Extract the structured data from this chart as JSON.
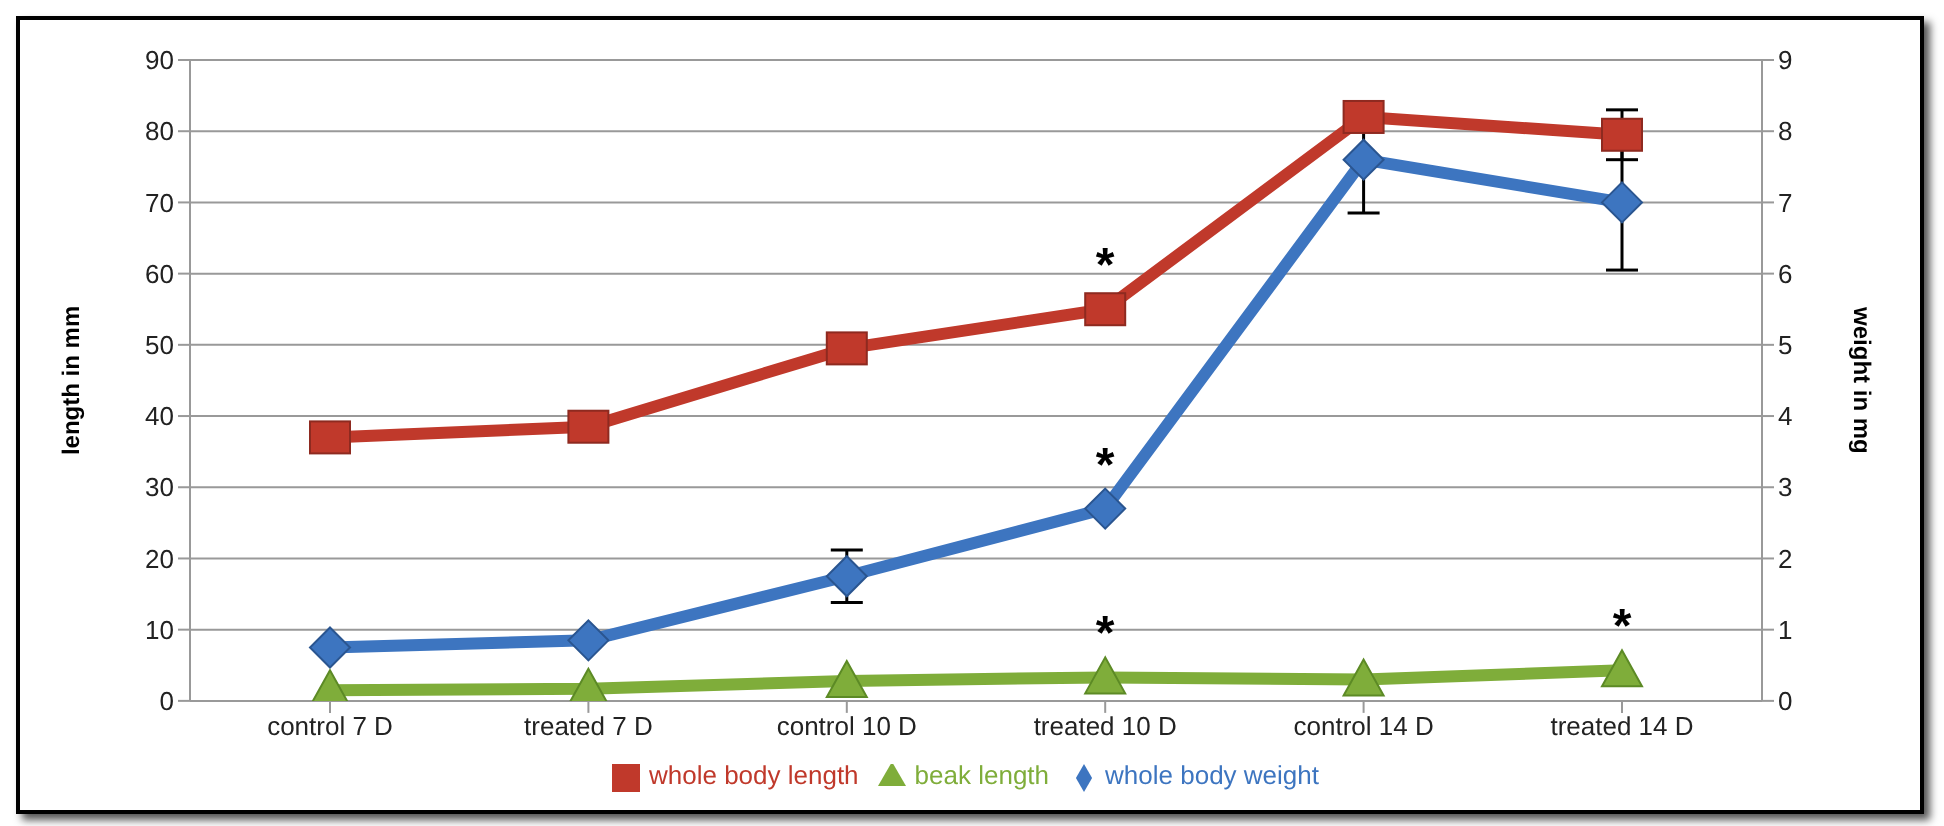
{
  "chart_data": {
    "type": "line",
    "ylabel": "length in mm",
    "y2label": "weight in mg",
    "categories": [
      "control 7 D",
      "treated 7 D",
      "control 10 D",
      "treated 10 D",
      "control 14 D",
      "treated 14 D"
    ],
    "series": [
      {
        "name": "whole body length",
        "color": "#c0392b",
        "marker": "square",
        "values": [
          37,
          38.5,
          49.5,
          55,
          82,
          79.5
        ],
        "errors": [
          null,
          null,
          null,
          null,
          null,
          3.5
        ]
      },
      {
        "name": "beak length",
        "color": "#7fad3a",
        "marker": "triangle",
        "values": [
          1.5,
          1.7,
          2.8,
          3.3,
          3.0,
          4.3
        ]
      },
      {
        "name": "whole body weight",
        "color": "#3d75c0",
        "marker": "diamond",
        "axis": "y2",
        "values": [
          0.75,
          0.85,
          1.75,
          2.7,
          7.6,
          7.0
        ],
        "errors": [
          null,
          null,
          0.37,
          null,
          0.75,
          0.95
        ]
      }
    ],
    "ylim": [
      0,
      90
    ],
    "yticks": [
      0,
      10,
      20,
      30,
      40,
      50,
      60,
      70,
      80,
      90
    ],
    "y2lim": [
      0,
      9
    ],
    "y2ticks": [
      0,
      1,
      2,
      3,
      4,
      5,
      6,
      7,
      8,
      9
    ],
    "grid": "y",
    "legend": "bottom",
    "annotations": [
      {
        "text": "*",
        "x": "treated 10 D",
        "y": 55
      },
      {
        "text": "*",
        "x": "treated 10 D",
        "y": 27
      },
      {
        "text": "*",
        "x": "treated 10 D",
        "y": 3.3
      },
      {
        "text": "*",
        "x": "treated 14 D",
        "y": 4.3
      }
    ]
  }
}
